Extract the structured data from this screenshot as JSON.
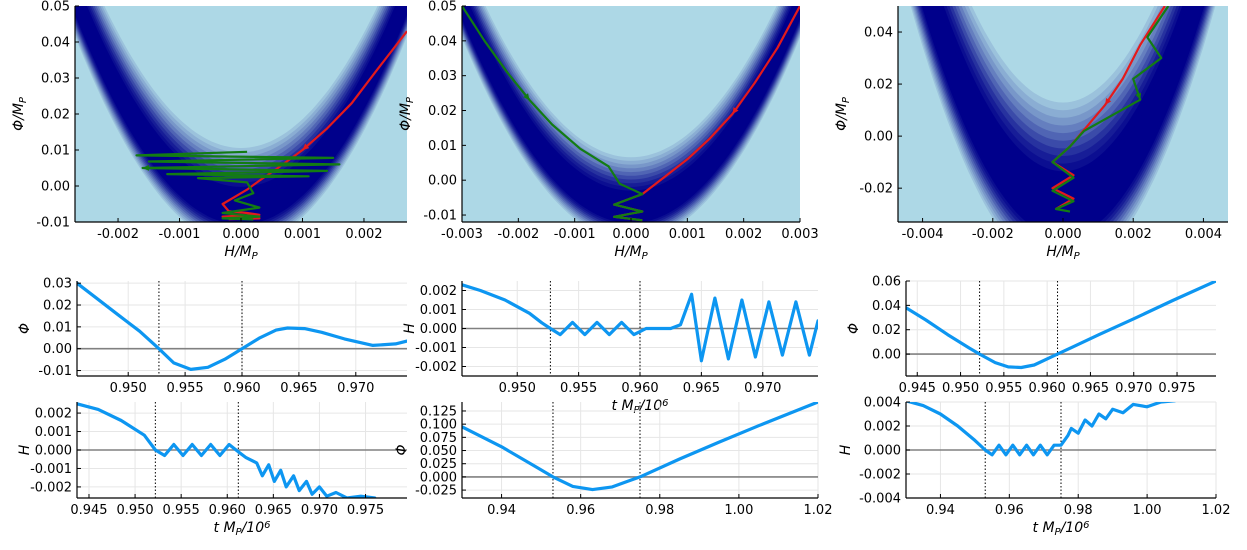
{
  "colors": {
    "phase_background": "#add8e6",
    "phase_band": "#00008b",
    "trajectory_red": "#e31a1c",
    "trajectory_green": "#137c13",
    "series": "#0d96f1",
    "zero_line": "#808080",
    "grid": "#e6e6e6"
  },
  "chart_data": [
    {
      "type": "heatmap",
      "title": "",
      "xlabel": "H/M_P",
      "ylabel": "Φ/M_P",
      "xlim": [
        -0.0027,
        0.0027
      ],
      "ylim": [
        -0.01,
        0.05
      ],
      "xticks": [
        -0.002,
        -0.001,
        0.0,
        0.001,
        0.002
      ],
      "xtick_labels": [
        "-0.002",
        "-0.001",
        "0.000",
        "0.001",
        "0.002"
      ],
      "yticks": [
        -0.01,
        0.0,
        0.01,
        0.02,
        0.03,
        0.04,
        0.05
      ],
      "ytick_labels": [
        "-0.01",
        "0.00",
        "0.01",
        "0.02",
        "0.03",
        "0.04",
        "0.05"
      ],
      "band": {
        "curvature": 8000,
        "y_min": -0.007,
        "width": 0.009
      },
      "grid": false,
      "legend": "none",
      "series": [
        {
          "color": "red",
          "points": [
            [
              0.0027,
              0.043
            ],
            [
              0.0022,
              0.032
            ],
            [
              0.0018,
              0.023
            ],
            [
              0.0014,
              0.016
            ],
            [
              0.001,
              0.01
            ],
            [
              0.0006,
              0.005
            ],
            [
              0.0003,
              0.0015
            ],
            [
              0.0001,
              -0.001
            ],
            [
              -0.0001,
              -0.003
            ],
            [
              -0.0003,
              -0.005
            ],
            [
              -0.0002,
              -0.007
            ],
            [
              0.0001,
              -0.0075
            ],
            [
              0.0003,
              -0.008
            ],
            [
              -0.0003,
              -0.0085
            ],
            [
              0.0003,
              -0.009
            ],
            [
              -0.0002,
              -0.0092
            ]
          ]
        },
        {
          "color": "green",
          "points": [
            [
              0.0001,
              0.0095
            ],
            [
              -0.0017,
              0.0085
            ],
            [
              0.0015,
              0.0078
            ],
            [
              -0.0015,
              0.0068
            ],
            [
              0.0016,
              0.006
            ],
            [
              -0.0016,
              0.005
            ],
            [
              0.0014,
              0.0042
            ],
            [
              -0.0012,
              0.0033
            ],
            [
              0.0011,
              0.0027
            ],
            [
              -0.0007,
              0.0022
            ],
            [
              0.0001,
              0.001
            ],
            [
              0.0002,
              -0.002
            ],
            [
              -0.0001,
              -0.004
            ],
            [
              0.0003,
              -0.006
            ],
            [
              -0.0003,
              -0.0075
            ],
            [
              0.0003,
              -0.0085
            ],
            [
              -0.0003,
              -0.009
            ],
            [
              0.0002,
              -0.0093
            ]
          ]
        }
      ]
    },
    {
      "type": "heatmap",
      "title": "",
      "xlabel": "H/M_P",
      "ylabel": "Φ/M_P",
      "xlim": [
        -0.003,
        0.003
      ],
      "ylim": [
        -0.012,
        0.05
      ],
      "xticks": [
        -0.003,
        -0.002,
        -0.001,
        0.0,
        0.001,
        0.002,
        0.003
      ],
      "xtick_labels": [
        "-0.003",
        "-0.002",
        "-0.001",
        "0.000",
        "0.001",
        "0.002",
        "0.003"
      ],
      "yticks": [
        -0.01,
        0.0,
        0.01,
        0.02,
        0.03,
        0.04,
        0.05
      ],
      "ytick_labels": [
        "-0.01",
        "0.00",
        "0.01",
        "0.02",
        "0.03",
        "0.04",
        "0.05"
      ],
      "band": {
        "curvature": 6500,
        "y_min": -0.009,
        "width": 0.008
      },
      "grid": false,
      "legend": "none",
      "series": [
        {
          "color": "red",
          "points": [
            [
              0.003,
              0.05
            ],
            [
              0.0026,
              0.038
            ],
            [
              0.0022,
              0.028
            ],
            [
              0.0018,
              0.019
            ],
            [
              0.0014,
              0.012
            ],
            [
              0.001,
              0.006
            ],
            [
              0.0006,
              0.001
            ],
            [
              0.0002,
              -0.004
            ],
            [
              -0.0003,
              -0.007
            ],
            [
              0.0002,
              -0.009
            ],
            [
              -0.0003,
              -0.0105
            ],
            [
              0.0002,
              -0.0115
            ]
          ]
        },
        {
          "color": "green",
          "points": [
            [
              -0.003,
              0.05
            ],
            [
              -0.0026,
              0.04
            ],
            [
              -0.0022,
              0.031
            ],
            [
              -0.0018,
              0.023
            ],
            [
              -0.0014,
              0.016
            ],
            [
              -0.0009,
              0.009
            ],
            [
              -0.0004,
              0.004
            ],
            [
              -0.0002,
              -0.001
            ],
            [
              0.0002,
              -0.004
            ],
            [
              -0.0003,
              -0.007
            ],
            [
              0.0002,
              -0.009
            ],
            [
              -0.0003,
              -0.0105
            ],
            [
              0.0002,
              -0.0115
            ]
          ]
        }
      ]
    },
    {
      "type": "heatmap",
      "title": "",
      "xlabel": "H/M_P",
      "ylabel": "Φ/M_P",
      "xlim": [
        -0.0047,
        0.0047
      ],
      "ylim": [
        -0.033,
        0.05
      ],
      "xticks": [
        -0.004,
        -0.002,
        0.0,
        0.002,
        0.004
      ],
      "xtick_labels": [
        "-0.004",
        "-0.002",
        "0.000",
        "0.002",
        "0.004"
      ],
      "yticks": [
        -0.02,
        0.0,
        0.02,
        0.04
      ],
      "ytick_labels": [
        "-0.02",
        "0.00",
        "0.02",
        "0.04"
      ],
      "band": {
        "curvature": 5500,
        "y_min": -0.03,
        "width": 0.022
      },
      "grid": false,
      "legend": "none",
      "series": [
        {
          "color": "red",
          "points": [
            [
              0.0029,
              0.05
            ],
            [
              0.0022,
              0.035
            ],
            [
              0.0017,
              0.022
            ],
            [
              0.0012,
              0.012
            ],
            [
              0.0007,
              0.004
            ],
            [
              0.0002,
              -0.004
            ],
            [
              -0.0003,
              -0.01
            ],
            [
              0.0003,
              -0.015
            ],
            [
              -0.0003,
              -0.02
            ],
            [
              0.0003,
              -0.024
            ],
            [
              -0.0002,
              -0.028
            ]
          ]
        },
        {
          "color": "green",
          "points": [
            [
              0.003,
              0.05
            ],
            [
              0.0024,
              0.038
            ],
            [
              0.0028,
              0.03
            ],
            [
              0.002,
              0.022
            ],
            [
              0.0022,
              0.014
            ],
            [
              0.0014,
              0.008
            ],
            [
              0.0006,
              0.002
            ],
            [
              0.0002,
              -0.004
            ],
            [
              -0.0003,
              -0.01
            ],
            [
              0.0003,
              -0.016
            ],
            [
              -0.0003,
              -0.021
            ],
            [
              0.0003,
              -0.025
            ],
            [
              -0.0002,
              -0.028
            ],
            [
              0.0002,
              -0.029
            ]
          ]
        }
      ]
    },
    {
      "type": "line",
      "title": "",
      "xlabel": "",
      "ylabel": "Φ",
      "xlim": [
        0.9455,
        0.9745
      ],
      "ylim": [
        -0.0125,
        0.031
      ],
      "xticks": [
        0.95,
        0.955,
        0.96,
        0.965,
        0.97
      ],
      "xtick_labels": [
        "0.950",
        "0.955",
        "0.960",
        "0.965",
        "0.970"
      ],
      "yticks": [
        -0.01,
        0.0,
        0.01,
        0.02,
        0.03
      ],
      "ytick_labels": [
        "-0.01",
        "0.00",
        "0.01",
        "0.02",
        "0.03"
      ],
      "vlines": [
        0.9527,
        0.96
      ],
      "hline": 0,
      "grid": true,
      "series": [
        {
          "x": [
            0.9455,
            0.947,
            0.949,
            0.951,
            0.9527,
            0.954,
            0.9555,
            0.957,
            0.9585,
            0.96,
            0.9615,
            0.963,
            0.964,
            0.9655,
            0.967,
            0.969,
            0.9715,
            0.9735,
            0.9745
          ],
          "y": [
            0.03,
            0.024,
            0.016,
            0.008,
            0.0,
            -0.0065,
            -0.0095,
            -0.0085,
            -0.0048,
            0.0,
            0.0048,
            0.0085,
            0.0095,
            0.0092,
            0.0075,
            0.0045,
            0.0015,
            0.0022,
            0.0035
          ]
        }
      ]
    },
    {
      "type": "line",
      "title": "",
      "xlabel": "t M_P/10^6",
      "ylabel": "H",
      "xlim": [
        0.9455,
        0.9745
      ],
      "ylim": [
        -0.0025,
        0.0025
      ],
      "xticks": [
        0.95,
        0.955,
        0.96,
        0.965,
        0.97
      ],
      "xtick_labels": [
        "0.950",
        "0.955",
        "0.960",
        "0.965",
        "0.970"
      ],
      "yticks": [
        -0.002,
        -0.001,
        0.0,
        0.001,
        0.002
      ],
      "ytick_labels": [
        "-0.002",
        "-0.001",
        "0.000",
        "0.001",
        "0.002"
      ],
      "vlines": [
        0.9527,
        0.96
      ],
      "hline": 0,
      "grid": true,
      "series": [
        {
          "x": [
            0.9455,
            0.947,
            0.949,
            0.951,
            0.952,
            0.9527,
            0.9535,
            0.9545,
            0.9555,
            0.9565,
            0.9575,
            0.9585,
            0.9595,
            0.9605,
            0.9615,
            0.9625,
            0.9633,
            0.9642,
            0.965,
            0.9661,
            0.9672,
            0.9683,
            0.9694,
            0.9705,
            0.9716,
            0.9727,
            0.9738,
            0.9745
          ],
          "y": [
            0.0023,
            0.002,
            0.0015,
            0.0008,
            0.0003,
            0.0,
            -0.00032,
            0.00032,
            -0.00032,
            0.00032,
            -0.00032,
            0.00032,
            -0.00032,
            0.0,
            0.0,
            0.0,
            0.0002,
            0.0018,
            -0.0017,
            0.0016,
            -0.0016,
            0.0015,
            -0.0015,
            0.0014,
            -0.0014,
            0.0014,
            -0.0014,
            0.0004
          ]
        }
      ]
    },
    {
      "type": "line",
      "title": "",
      "xlabel": "",
      "ylabel": "Φ",
      "xlim": [
        0.9437,
        0.9795
      ],
      "ylim": [
        -0.018,
        0.06
      ],
      "xticks": [
        0.945,
        0.95,
        0.955,
        0.96,
        0.965,
        0.97,
        0.975
      ],
      "xtick_labels": [
        "0.945",
        "0.950",
        "0.955",
        "0.960",
        "0.965",
        "0.970",
        "0.975"
      ],
      "yticks": [
        0.0,
        0.02,
        0.04,
        0.06
      ],
      "ytick_labels": [
        "0.00",
        "0.02",
        "0.04",
        "0.06"
      ],
      "vlines": [
        0.9522,
        0.9612
      ],
      "hline": 0,
      "grid": true,
      "series": [
        {
          "x": [
            0.9437,
            0.946,
            0.9485,
            0.951,
            0.9522,
            0.954,
            0.9555,
            0.957,
            0.9585,
            0.96,
            0.9612,
            0.963,
            0.966,
            0.97,
            0.9745,
            0.9795
          ],
          "y": [
            0.038,
            0.028,
            0.016,
            0.005,
            0.0,
            -0.007,
            -0.0105,
            -0.011,
            -0.009,
            -0.004,
            0.0,
            0.006,
            0.016,
            0.029,
            0.044,
            0.06
          ]
        }
      ]
    },
    {
      "type": "line",
      "title": "",
      "xlabel": "t M_P/10^6",
      "ylabel": "H",
      "xlim": [
        0.9437,
        0.9795
      ],
      "ylim": [
        -0.0026,
        0.0026
      ],
      "xticks": [
        0.945,
        0.95,
        0.955,
        0.96,
        0.965,
        0.97,
        0.975
      ],
      "xtick_labels": [
        "0.945",
        "0.950",
        "0.955",
        "0.960",
        "0.965",
        "0.970",
        "0.975"
      ],
      "yticks": [
        -0.002,
        -0.001,
        0.0,
        0.001,
        0.002
      ],
      "ytick_labels": [
        "-0.002",
        "-0.001",
        "0.000",
        "0.001",
        "0.002"
      ],
      "vlines": [
        0.9522,
        0.9612
      ],
      "hline": 0,
      "grid": true,
      "series": [
        {
          "x": [
            0.9437,
            0.946,
            0.9485,
            0.951,
            0.9522,
            0.9532,
            0.9542,
            0.9552,
            0.9562,
            0.9572,
            0.9582,
            0.9592,
            0.9602,
            0.9612,
            0.962,
            0.9632,
            0.9638,
            0.9645,
            0.9651,
            0.9658,
            0.9664,
            0.9672,
            0.9678,
            0.9686,
            0.9692,
            0.97,
            0.9708,
            0.9718,
            0.973,
            0.9745,
            0.976
          ],
          "y": [
            0.0025,
            0.0022,
            0.0016,
            0.0008,
            0.0,
            -0.0003,
            0.0003,
            -0.0003,
            0.0003,
            -0.0003,
            0.0003,
            -0.0003,
            0.0003,
            -0.0001,
            -0.0004,
            -0.0007,
            -0.0014,
            -0.0008,
            -0.0017,
            -0.0011,
            -0.002,
            -0.0014,
            -0.0022,
            -0.0017,
            -0.0024,
            -0.002,
            -0.0025,
            -0.0023,
            -0.0026,
            -0.0025,
            -0.0026
          ]
        }
      ]
    },
    {
      "type": "line",
      "title": "",
      "xlabel": "",
      "ylabel": "Φ",
      "xlim": [
        0.93,
        1.02
      ],
      "ylim": [
        -0.04,
        0.142
      ],
      "xticks": [
        0.94,
        0.96,
        0.98,
        1.0,
        1.02
      ],
      "xtick_labels": [
        "0.94",
        "0.96",
        "0.98",
        "1.00",
        "1.02"
      ],
      "yticks": [
        -0.025,
        0.0,
        0.025,
        0.05,
        0.075,
        0.1,
        0.125
      ],
      "ytick_labels": [
        "-0.025",
        "0.000",
        "0.025",
        "0.050",
        "0.075",
        "0.100",
        "0.125"
      ],
      "vlines": [
        0.953,
        0.975
      ],
      "hline": 0,
      "grid": true,
      "series": [
        {
          "x": [
            0.93,
            0.94,
            0.948,
            0.953,
            0.958,
            0.963,
            0.968,
            0.972,
            0.975,
            0.985,
            0.995,
            1.005,
            1.02
          ],
          "y": [
            0.095,
            0.057,
            0.022,
            0.0,
            -0.018,
            -0.024,
            -0.019,
            -0.008,
            0.0,
            0.034,
            0.066,
            0.097,
            0.142
          ]
        }
      ]
    },
    {
      "type": "line",
      "title": "",
      "xlabel": "t M_P/10^6",
      "ylabel": "H",
      "xlim": [
        0.93,
        1.02
      ],
      "ylim": [
        -0.004,
        0.004
      ],
      "xticks": [
        0.94,
        0.96,
        0.98,
        1.0,
        1.02
      ],
      "xtick_labels": [
        "0.94",
        "0.96",
        "0.98",
        "1.00",
        "1.02"
      ],
      "yticks": [
        -0.004,
        -0.002,
        0.0,
        0.002,
        0.004
      ],
      "ytick_labels": [
        "-0.004",
        "-0.002",
        "0.000",
        "0.002",
        "0.004"
      ],
      "vlines": [
        0.953,
        0.975
      ],
      "hline": 0,
      "grid": true,
      "series": [
        {
          "x": [
            0.93,
            0.935,
            0.94,
            0.945,
            0.95,
            0.953,
            0.955,
            0.957,
            0.959,
            0.961,
            0.963,
            0.965,
            0.967,
            0.969,
            0.971,
            0.973,
            0.975,
            0.977,
            0.978,
            0.98,
            0.982,
            0.984,
            0.986,
            0.988,
            0.99,
            0.993,
            0.996,
            1.0,
            1.004,
            1.008
          ],
          "y": [
            0.0041,
            0.0037,
            0.003,
            0.002,
            0.0008,
            0.0,
            -0.0004,
            0.0004,
            -0.0004,
            0.0004,
            -0.0004,
            0.0004,
            -0.0004,
            0.0004,
            -0.0004,
            0.0004,
            0.0004,
            0.0012,
            0.0018,
            0.0014,
            0.0025,
            0.002,
            0.003,
            0.0026,
            0.0034,
            0.0031,
            0.0038,
            0.0036,
            0.004,
            0.0041
          ]
        }
      ]
    }
  ]
}
